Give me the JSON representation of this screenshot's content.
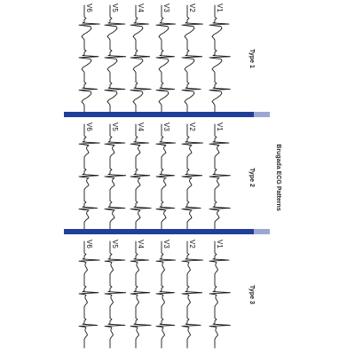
{
  "figure": {
    "title": "Brugada ECG Patterns",
    "accent_color": "#1f3f99",
    "panels": [
      {
        "title": "Type 1",
        "pattern": "coved",
        "leads": [
          "V1",
          "V2",
          "V3",
          "V4",
          "V5",
          "V6"
        ]
      },
      {
        "title": "Type 2",
        "pattern": "saddleback",
        "leads": [
          "V1",
          "V2",
          "V3",
          "V4",
          "V5",
          "V6"
        ]
      },
      {
        "title": "Type 3",
        "pattern": "saddleback-low",
        "leads": [
          "V1",
          "V2",
          "V3",
          "V4",
          "V5",
          "V6"
        ]
      }
    ]
  }
}
